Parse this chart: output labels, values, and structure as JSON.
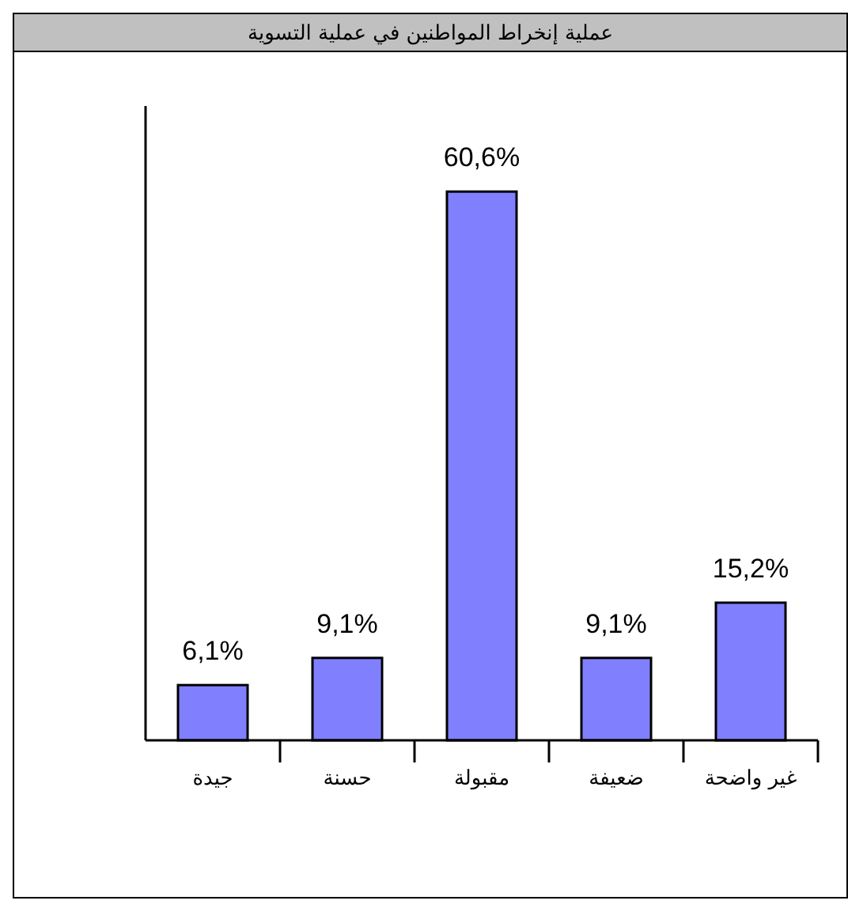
{
  "chart_data": {
    "type": "bar",
    "title": "عملية إنخراط المواطنين في عملية التسوية",
    "categories": [
      "جيدة",
      "حسنة",
      "مقبولة",
      "ضعيفة",
      "غير واضحة"
    ],
    "values": [
      6.1,
      9.1,
      60.6,
      9.1,
      15.2
    ],
    "value_labels": [
      "6,1%",
      "9,1%",
      "60,6%",
      "9,1%",
      "15,2%"
    ],
    "color": "#8080ff"
  }
}
